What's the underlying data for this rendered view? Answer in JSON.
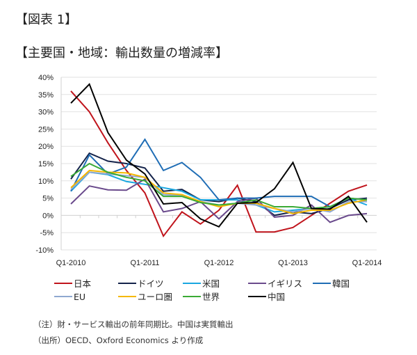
{
  "figure_label": "【図表 1】",
  "chart_data": {
    "type": "line",
    "title": "【主要国・地域：輸出数量の増減率】",
    "xlabel": "",
    "ylabel": "",
    "x_tick_labels": [
      "Q1-2010",
      "Q1-2011",
      "Q1-2012",
      "Q1-2013",
      "Q1-2014"
    ],
    "x_count": 17,
    "y_ticks": [
      40,
      35,
      30,
      25,
      20,
      15,
      10,
      5,
      0,
      -5,
      -10
    ],
    "y_tick_labels": [
      "40%",
      "35%",
      "30%",
      "25%",
      "20%",
      "15%",
      "10%",
      "5%",
      "0%",
      "-5%",
      "-10%"
    ],
    "ylim": [
      -10,
      40
    ],
    "grid": true,
    "legend_position": "bottom",
    "series": [
      {
        "name": "日本",
        "color": "#c0141c",
        "values": [
          36,
          30,
          21,
          13,
          6.5,
          -6,
          1,
          -2.5,
          1.5,
          8.7,
          -4.8,
          -4.8,
          -3.5,
          0,
          3.5,
          7,
          8.8
        ]
      },
      {
        "name": "ドイツ",
        "color": "#14234a",
        "values": [
          10.5,
          18,
          15.7,
          15,
          13.7,
          7,
          7.5,
          4.5,
          4,
          5,
          4,
          0,
          1,
          0.5,
          2,
          4.5,
          5
        ]
      },
      {
        "name": "米国",
        "color": "#1aa7e0",
        "values": [
          7,
          12.5,
          11.8,
          9.8,
          9,
          8,
          7,
          4.5,
          4.5,
          4.5,
          3,
          1,
          1.5,
          2,
          2.5,
          5,
          3
        ]
      },
      {
        "name": "イギリス",
        "color": "#6a4a8c",
        "values": [
          3.3,
          8.5,
          7.4,
          7.3,
          10.5,
          1,
          2,
          4,
          -1,
          4,
          5,
          -0.5,
          0,
          3,
          -2,
          0,
          0.5
        ]
      },
      {
        "name": "韓国",
        "color": "#1f6db5",
        "values": [
          7,
          17.5,
          12,
          14,
          22,
          13,
          15.3,
          11,
          4.5,
          5,
          5,
          5.5,
          5.5,
          5.5,
          2.5,
          5,
          4.5
        ]
      },
      {
        "name": "EU",
        "color": "#8fa8d0",
        "values": [
          7.5,
          12.5,
          12,
          11.5,
          11,
          6,
          5.8,
          4,
          3,
          3.5,
          3,
          2,
          1,
          2,
          1,
          4,
          4
        ]
      },
      {
        "name": "ユーロ圏",
        "color": "#f5b800",
        "values": [
          8,
          13,
          12.5,
          12.3,
          11,
          6.5,
          6,
          4,
          2.5,
          3.5,
          3.5,
          2,
          0.5,
          1.5,
          1.5,
          3.5,
          4.5
        ]
      },
      {
        "name": "世界",
        "color": "#3aaa35",
        "values": [
          11.3,
          15,
          12.5,
          11,
          10,
          5.5,
          5.5,
          3.7,
          3,
          3.5,
          4.5,
          2.5,
          2.5,
          2,
          2.5,
          5,
          4.5
        ]
      },
      {
        "name": "中国",
        "color": "#000000",
        "values": [
          32.5,
          38,
          24,
          16,
          12,
          3.3,
          3.7,
          -1,
          -3.3,
          3.5,
          3.7,
          7.7,
          15.3,
          2,
          1.8,
          5.5,
          -2
        ]
      }
    ]
  },
  "notes": [
    "（注）財・サービス輸出の前年同期比。中国は実質輸出",
    "（出所）OECD、Oxford Economics より作成"
  ]
}
